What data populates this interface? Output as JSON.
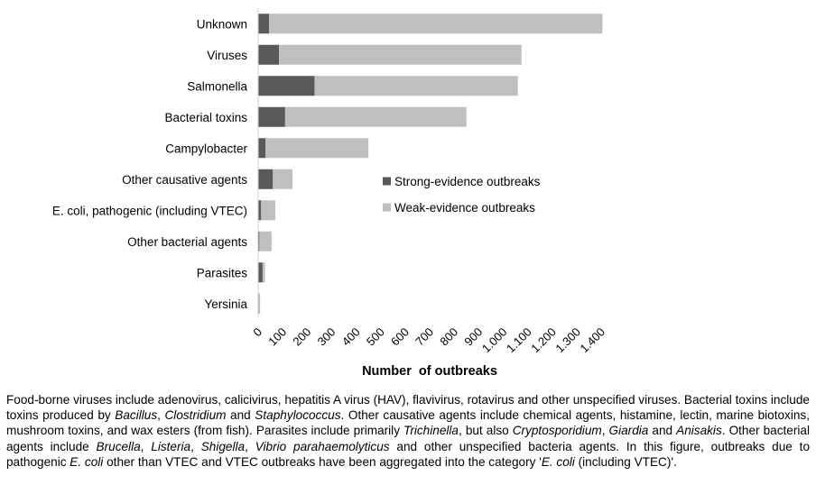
{
  "chart_data": {
    "type": "bar",
    "orientation": "horizontal",
    "stacked": true,
    "categories": [
      "Unknown",
      "Viruses",
      "Salmonella",
      "Bacterial toxins",
      "Campylobacter",
      "Other causative agents",
      "E. coli, pathogenic (including VTEC)",
      "Other bacterial agents",
      "Parasites",
      "Yersinia"
    ],
    "series": [
      {
        "name": "Strong-evidence outbreaks",
        "color": "#595959",
        "values": [
          45,
          85,
          230,
          110,
          30,
          60,
          12,
          5,
          18,
          3
        ]
      },
      {
        "name": "Weak-evidence outbreaks",
        "color": "#bfbfbf",
        "values": [
          1360,
          990,
          830,
          740,
          420,
          80,
          58,
          50,
          10,
          5
        ]
      }
    ],
    "xlabel": "Number  of outbreaks",
    "ylabel": "",
    "xlim": [
      0,
      1400
    ],
    "xticks": [
      0,
      100,
      200,
      300,
      400,
      500,
      600,
      700,
      800,
      900,
      1000,
      1100,
      1200,
      1300,
      1400
    ],
    "xtick_labels": [
      "0",
      "100",
      "200",
      "300",
      "400",
      "500",
      "600",
      "700",
      "800",
      "900",
      "1.000",
      "1.100",
      "1.200",
      "1.300",
      "1.400"
    ],
    "grid": false,
    "legend_position": "center-right"
  },
  "footnote": {
    "segments": [
      {
        "t": "Food-borne viruses include adenovirus, calicivirus, hepatitis A virus (HAV), flavivirus, rotavirus and other unspecified viruses. Bacterial toxins include toxins produced by "
      },
      {
        "t": "Bacillus",
        "i": true
      },
      {
        "t": ", "
      },
      {
        "t": "Clostridium",
        "i": true
      },
      {
        "t": " and "
      },
      {
        "t": "Staphylococcus",
        "i": true
      },
      {
        "t": ". Other causative agents include chemical agents, histamine, lectin, marine biotoxins, mushroom toxins, and wax esters (from fish). Parasites include primarily "
      },
      {
        "t": "Trichinella",
        "i": true
      },
      {
        "t": ", but also "
      },
      {
        "t": "Cryptosporidium",
        "i": true
      },
      {
        "t": ", "
      },
      {
        "t": "Giardia",
        "i": true
      },
      {
        "t": " and "
      },
      {
        "t": "Anisakis",
        "i": true
      },
      {
        "t": ". Other bacterial agents include "
      },
      {
        "t": "Brucella",
        "i": true
      },
      {
        "t": ", "
      },
      {
        "t": "Listeria",
        "i": true
      },
      {
        "t": ", "
      },
      {
        "t": "Shigella",
        "i": true
      },
      {
        "t": ", "
      },
      {
        "t": "Vibrio parahaemolyticus",
        "i": true
      },
      {
        "t": " and other unspecified bacteria agents. In this figure, outbreaks due to pathogenic "
      },
      {
        "t": "E. coli",
        "i": true
      },
      {
        "t": " other than VTEC and VTEC outbreaks have been aggregated into the category '"
      },
      {
        "t": "E. coli",
        "i": true
      },
      {
        "t": " (including VTEC)'."
      }
    ]
  }
}
